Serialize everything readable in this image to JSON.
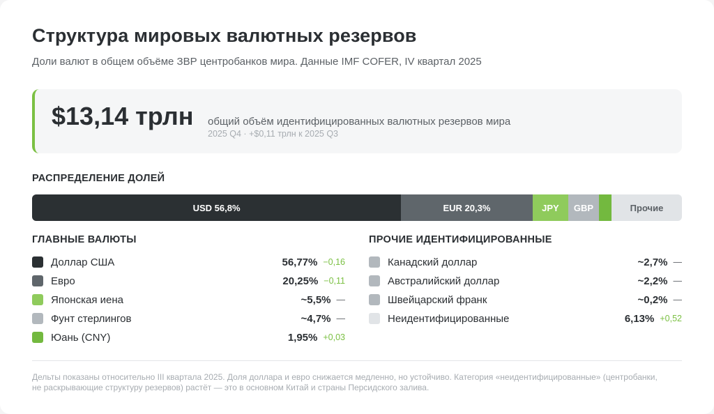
{
  "header": {
    "title": "Структура мировых валютных резервов",
    "subtitle": "Доли валют в общем объёме ЗВР центробанков мира. Данные IMF COFER, IV квартал 2025"
  },
  "total": {
    "value": "$13,14 трлн",
    "description": "общий объём идентифицированных валютных резервов мира",
    "delta": "2025 Q4 · +$0,11 трлн к 2025 Q3"
  },
  "sections": {
    "distribution": "РАСПРЕДЕЛЕНИЕ ДОЛЕЙ",
    "main": "ГЛАВНЫЕ ВАЛЮТЫ",
    "other": "ПРОЧИЕ ИДЕНТИФИЦИРОВАННЫЕ"
  },
  "colors": {
    "usd": "#2b3033",
    "eur": "#5f666b",
    "jpy": "#8fcb5c",
    "gbp": "#b2b8bd",
    "cny": "#73b93f",
    "other": "#e1e4e7",
    "accent": "#7bc043"
  },
  "chart_data": {
    "type": "bar",
    "orientation": "horizontal-stacked",
    "segments": [
      {
        "name": "USD",
        "label": "USD 56,8%",
        "value": 56.77,
        "color": "#2b3033",
        "text_color": "#ffffff"
      },
      {
        "name": "EUR",
        "label": "EUR 20,3%",
        "value": 20.25,
        "color": "#5f666b",
        "text_color": "#ffffff"
      },
      {
        "name": "JPY",
        "label": "JPY",
        "value": 5.5,
        "color": "#8fcb5c",
        "text_color": "#ffffff"
      },
      {
        "name": "GBP",
        "label": "GBP",
        "value": 4.7,
        "color": "#b2b8bd",
        "text_color": "#ffffff"
      },
      {
        "name": "CNY",
        "label": "",
        "value": 1.95,
        "color": "#73b93f",
        "text_color": "#ffffff"
      },
      {
        "name": "Other",
        "label": "Прочие",
        "value": 10.83,
        "color": "#e1e4e7",
        "text_color": "#5c6166"
      }
    ]
  },
  "legend_main": [
    {
      "name": "Доллар США",
      "pct": "56,77%",
      "delta": "−0,16",
      "color": "#2b3033",
      "trend": "up"
    },
    {
      "name": "Евро",
      "pct": "20,25%",
      "delta": "−0,11",
      "color": "#5f666b",
      "trend": "up"
    },
    {
      "name": "Японская иена",
      "pct": "~5,5%",
      "delta": "—",
      "color": "#8fcb5c",
      "trend": "flat"
    },
    {
      "name": "Фунт стерлингов",
      "pct": "~4,7%",
      "delta": "—",
      "color": "#b2b8bd",
      "trend": "flat"
    },
    {
      "name": "Юань (CNY)",
      "pct": "1,95%",
      "delta": "+0,03",
      "color": "#73b93f",
      "trend": "up"
    }
  ],
  "legend_other": [
    {
      "name": "Канадский доллар",
      "pct": "~2,7%",
      "delta": "—",
      "color": "#b2b8bd",
      "trend": "flat"
    },
    {
      "name": "Австралийский доллар",
      "pct": "~2,2%",
      "delta": "—",
      "color": "#b2b8bd",
      "trend": "flat"
    },
    {
      "name": "Швейцарский франк",
      "pct": "~0,2%",
      "delta": "—",
      "color": "#b2b8bd",
      "trend": "flat"
    },
    {
      "name": "Неидентифицированные",
      "pct": "6,13%",
      "delta": "+0,52",
      "color": "#e1e4e7",
      "trend": "up"
    }
  ],
  "footnote": "Дельты показаны относительно III квартала 2025. Доля доллара и евро снижается медленно, но устойчиво. Категория «неидентифицированные» (центробанки, не раскрывающие структуру резервов) растёт — это в основном Китай и страны Персидского залива."
}
